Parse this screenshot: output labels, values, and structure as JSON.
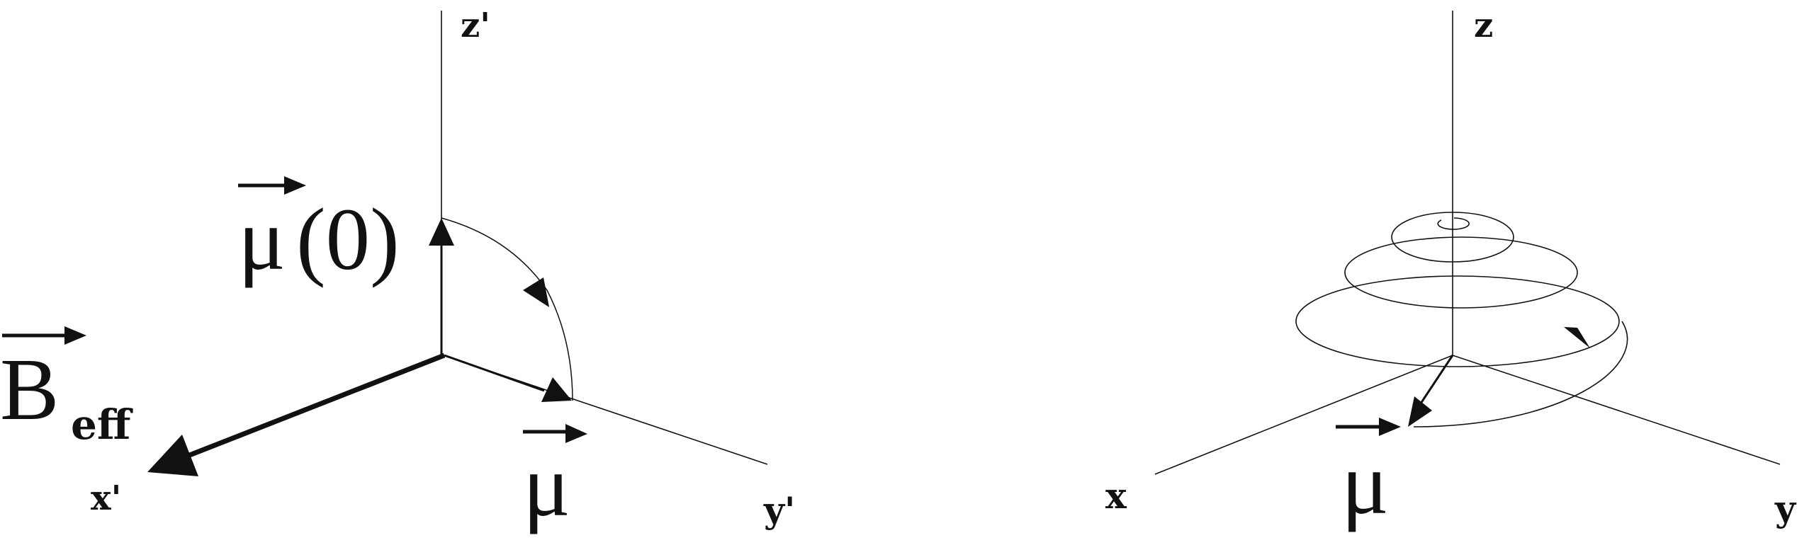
{
  "left_panel": {
    "axis_z": "z'",
    "axis_x": "x'",
    "axis_y": "y'",
    "mu0_symbol": "μ",
    "mu0_arg": "(0)",
    "beff_symbol": "B",
    "beff_sub": "eff",
    "mu_symbol": "μ"
  },
  "right_panel": {
    "axis_z": "z",
    "axis_x": "x",
    "axis_y": "y",
    "mu_symbol": "μ"
  },
  "colors": {
    "ink": "#111111",
    "background": "#ffffff"
  }
}
